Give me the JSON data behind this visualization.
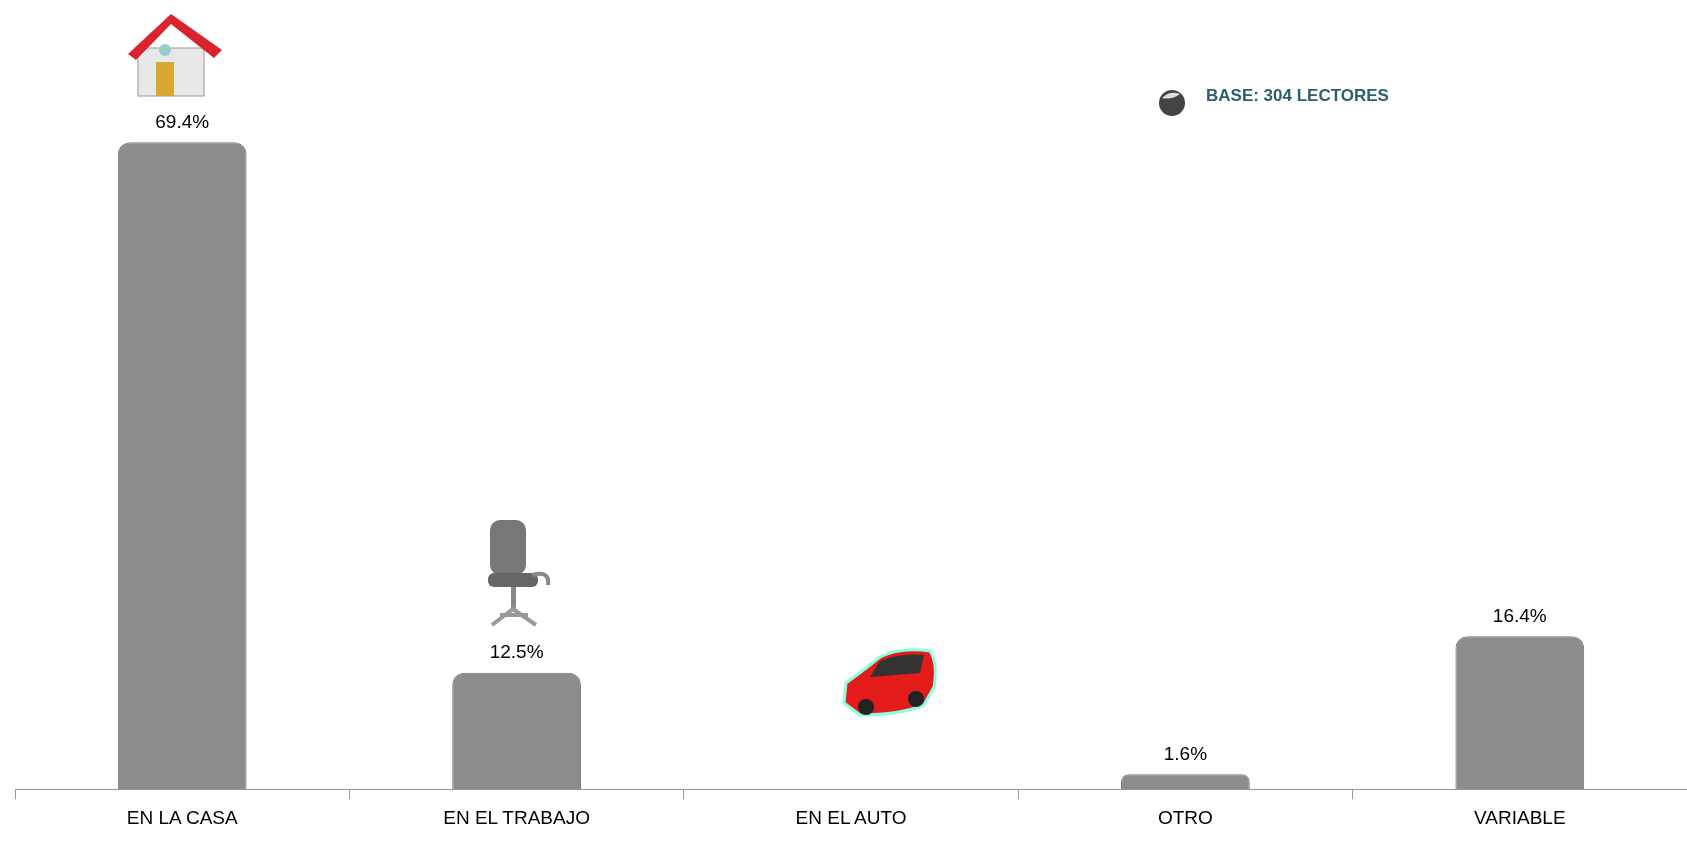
{
  "chart_data": {
    "type": "bar",
    "categories": [
      "EN LA CASA",
      "EN EL TRABAJO",
      "EN EL AUTO",
      "OTRO",
      "VARIABLE"
    ],
    "values": [
      69.4,
      12.5,
      null,
      1.6,
      16.4
    ],
    "value_labels": [
      "69.4%",
      "12.5%",
      null,
      "1.6%",
      "16.4%"
    ],
    "color": "#8c8c8c",
    "grid": false,
    "legend": false,
    "annotations": [
      "BASE: 304 LECTORES"
    ]
  }
}
